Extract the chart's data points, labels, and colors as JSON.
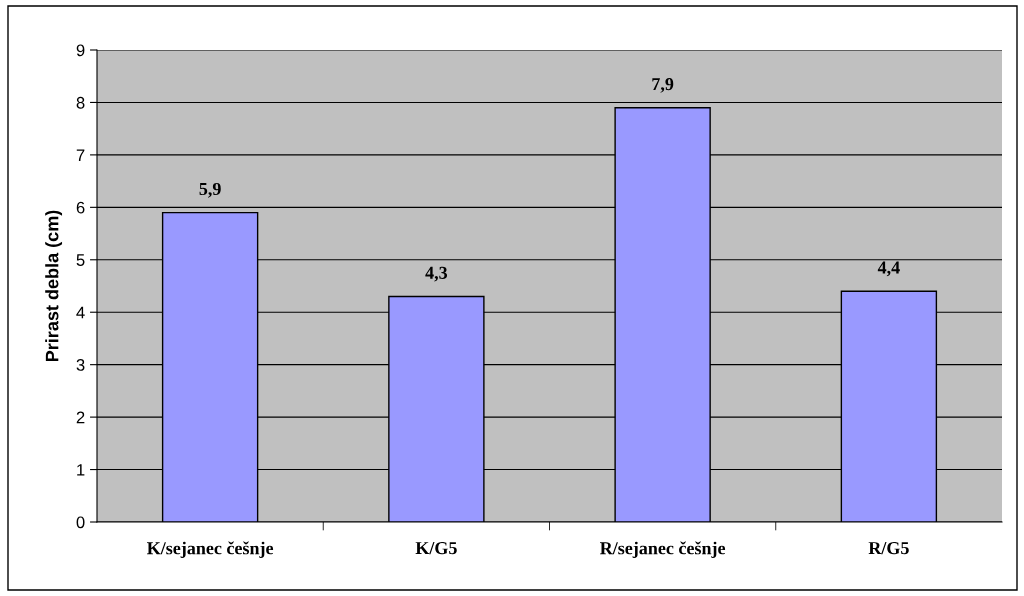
{
  "chart_data": {
    "type": "bar",
    "ylabel": "Prirast debla (cm)",
    "categories": [
      "K/sejanec češnje",
      "K/G5",
      "R/sejanec češnje",
      "R/G5"
    ],
    "values": [
      5.9,
      4.3,
      7.9,
      4.4
    ],
    "value_labels": [
      "5,9",
      "4,3",
      "7,9",
      "4,4"
    ],
    "color": "#9999ff",
    "ylim": [
      0,
      9
    ],
    "yticks": [
      0,
      1,
      2,
      3,
      4,
      5,
      6,
      7,
      8,
      9
    ],
    "grid": "y"
  }
}
